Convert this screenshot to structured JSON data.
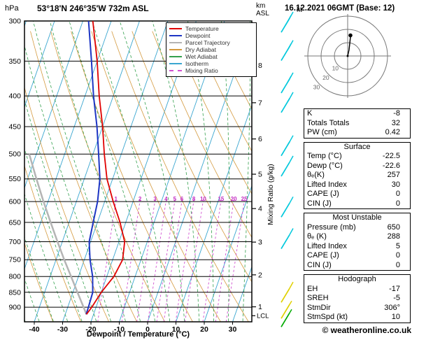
{
  "header": {
    "pressure_unit": "hPa",
    "title": "53°18'N 246°35'W 732m ASL",
    "km_line1": "km",
    "km_line2": "ASL",
    "date_title": "16.12.2021 06GMT (Base: 12)"
  },
  "legend": {
    "items": [
      {
        "label": "Temperature",
        "color": "#e00000",
        "dashed": false
      },
      {
        "label": "Dewpoint",
        "color": "#1d35c4",
        "dashed": false
      },
      {
        "label": "Parcel Trajectory",
        "color": "#b4b4b4",
        "dashed": false
      },
      {
        "label": "Dry Adiabat",
        "color": "#d49a3f",
        "dashed": false
      },
      {
        "label": "Wet Adiabat",
        "color": "#33a04d",
        "dashed": false
      },
      {
        "label": "Isotherm",
        "color": "#3aa6d0",
        "dashed": false
      },
      {
        "label": "Mixing Ratio",
        "color": "#d050d0",
        "dashed": true
      }
    ]
  },
  "axes": {
    "pressure_ticks": [
      300,
      350,
      400,
      450,
      500,
      550,
      600,
      650,
      700,
      750,
      800,
      850,
      900
    ],
    "temp_ticks": [
      -40,
      -30,
      -20,
      -10,
      0,
      10,
      20,
      30
    ],
    "km_ticks": [
      1,
      2,
      3,
      4,
      5,
      6,
      7,
      8
    ],
    "lcl_label": "LCL",
    "xlabel": "Dewpoint / Temperature (°C)",
    "mixing_axis_label": "Mixing Ratio (g/kg)",
    "mixing_ratio_labels": [
      1,
      2,
      3,
      4,
      5,
      6,
      8,
      10,
      15,
      20,
      25
    ]
  },
  "chart_data": {
    "type": "line",
    "subtype": "skew-t-log-p-sounding",
    "title": "53°18'N 246°35'W 732m ASL",
    "xlabel": "Dewpoint / Temperature (°C)",
    "ylabel": "hPa",
    "x_axis_range_c": [
      -45,
      38
    ],
    "pressure_axis_range_hpa": [
      300,
      952
    ],
    "pressure_levels": [
      925,
      900,
      850,
      800,
      750,
      700,
      650,
      600,
      550,
      500,
      450,
      400,
      350,
      300
    ],
    "series": [
      {
        "name": "Temperature",
        "color": "#e00000",
        "width": 1.8,
        "values": [
          -22.5,
          -21.5,
          -20,
          -17.5,
          -16.5,
          -18,
          -22,
          -27,
          -32,
          -36,
          -40,
          -45,
          -50,
          -56.5
        ]
      },
      {
        "name": "Dewpoint",
        "color": "#1d35c4",
        "width": 2,
        "values": [
          -22.6,
          -22.7,
          -23,
          -25,
          -28,
          -30.5,
          -31.5,
          -32.5,
          -34.5,
          -38,
          -42,
          -47,
          -52,
          -58
        ]
      },
      {
        "name": "Parcel Trajectory",
        "color": "#b4b4b4",
        "width": 2.5,
        "values": [
          -22.5,
          -24.4,
          -28.4,
          -32.6,
          -37.1,
          -41.7,
          -46.5,
          -51.6,
          -56.9,
          -62.5,
          null,
          null,
          null,
          null
        ]
      }
    ],
    "style": {
      "isotherm_color": "#3aa6d0",
      "dry_adiabat_color": "#d49a3f",
      "wet_adiabat_color": "#33a04d",
      "mixing_ratio_color": "#d050d0",
      "grid_color": "#000000"
    },
    "wind_barbs": [
      {
        "pressure_hpa": 305,
        "speed_kt": 25,
        "color": "#00c8dc"
      },
      {
        "pressure_hpa": 340,
        "speed_kt": 20,
        "color": "#00c8dc"
      },
      {
        "pressure_hpa": 385,
        "speed_kt": 20,
        "color": "#00c8dc"
      },
      {
        "pressure_hpa": 415,
        "speed_kt": 15,
        "color": "#00c8dc"
      },
      {
        "pressure_hpa": 490,
        "speed_kt": 15,
        "color": "#00c8dc"
      },
      {
        "pressure_hpa": 530,
        "speed_kt": 10,
        "color": "#00c8dc"
      },
      {
        "pressure_hpa": 620,
        "speed_kt": 10,
        "color": "#00c8dc"
      },
      {
        "pressure_hpa": 700,
        "speed_kt": 10,
        "color": "#00c8dc"
      },
      {
        "pressure_hpa": 860,
        "speed_kt": 10,
        "color": "#e0d000"
      },
      {
        "pressure_hpa": 915,
        "speed_kt": 5,
        "color": "#e0d000"
      },
      {
        "pressure_hpa": 945,
        "speed_kt": 5,
        "color": "#00aa00"
      }
    ],
    "lcl_pressure_hpa": 930
  },
  "hodograph": {
    "unit_label": "kt",
    "ring_spacing_kt": 10,
    "ring_labels": [
      "10",
      "20",
      "30"
    ],
    "trace_points_kt": [
      [
        0,
        0
      ],
      [
        1,
        4.5
      ],
      [
        1.6,
        9.5
      ],
      [
        2.1,
        14.5
      ]
    ],
    "marker_kt": [
      2.1,
      15.5
    ]
  },
  "tables": [
    {
      "rows": [
        [
          "K",
          "-8"
        ],
        [
          "Totals Totals",
          "32"
        ],
        [
          "PW (cm)",
          "0.42"
        ]
      ]
    },
    {
      "title": "Surface",
      "rows": [
        [
          "Temp (°C)",
          "-22.5"
        ],
        [
          "Dewp (°C)",
          "-22.6"
        ],
        [
          "θₑ(K)",
          "257"
        ],
        [
          "Lifted Index",
          "30"
        ],
        [
          "CAPE (J)",
          "0"
        ],
        [
          "CIN (J)",
          "0"
        ]
      ]
    },
    {
      "title": "Most Unstable",
      "rows": [
        [
          "Pressure (mb)",
          "650"
        ],
        [
          "θₑ (K)",
          "288"
        ],
        [
          "Lifted Index",
          "5"
        ],
        [
          "CAPE (J)",
          "0"
        ],
        [
          "CIN (J)",
          "0"
        ]
      ]
    },
    {
      "title": "Hodograph",
      "rows": [
        [
          "EH",
          "-17"
        ],
        [
          "SREH",
          "-5"
        ],
        [
          "StmDir",
          "306°"
        ],
        [
          "StmSpd (kt)",
          "10"
        ]
      ]
    }
  ],
  "footer": {
    "copyright": "© weatheronline.co.uk"
  }
}
